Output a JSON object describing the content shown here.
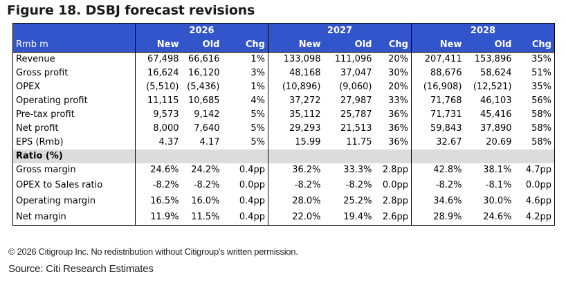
{
  "title": "Figure 18. DSBJ forecast revisions",
  "years": [
    "2026",
    "2027",
    "2028"
  ],
  "unit_label": "Rmb m",
  "col_labels": [
    "New",
    "Old",
    "Chg"
  ],
  "rows": [
    {
      "label": "Revenue",
      "values": [
        "67,498",
        "66,616",
        "1%",
        "133,098",
        "111,096",
        "20%",
        "207,411",
        "153,896",
        "35%"
      ]
    },
    {
      "label": "Gross profit",
      "values": [
        "16,624",
        "16,120",
        "3%",
        "48,168",
        "37,047",
        "30%",
        "88,676",
        "58,624",
        "51%"
      ]
    },
    {
      "label": "OPEX",
      "values": [
        "(5,510)",
        "(5,436)",
        "1%",
        "(10,896)",
        "(9,060)",
        "20%",
        "(16,908)",
        "(12,521)",
        "35%"
      ]
    },
    {
      "label": "Operating profit",
      "values": [
        "11,115",
        "10,685",
        "4%",
        "37,272",
        "27,987",
        "33%",
        "71,768",
        "46,103",
        "56%"
      ]
    },
    {
      "label": "Pre-tax profit",
      "values": [
        "9,573",
        "9,142",
        "5%",
        "35,112",
        "25,787",
        "36%",
        "71,731",
        "45,416",
        "58%"
      ]
    },
    {
      "label": "Net profit",
      "values": [
        "8,000",
        "7,640",
        "5%",
        "29,293",
        "21,513",
        "36%",
        "59,843",
        "37,890",
        "58%"
      ]
    },
    {
      "label": "EPS (Rmb)",
      "values": [
        "4.37",
        "4.17",
        "5%",
        "15.99",
        "11.75",
        "36%",
        "32.67",
        "20.69",
        "58%"
      ]
    }
  ],
  "ratio_section_label": "Ratio (%)",
  "ratio_rows": [
    {
      "label": "Gross margin",
      "values": [
        "24.6%",
        "24.2%",
        "0.4pp",
        "36.2%",
        "33.3%",
        "2.8pp",
        "42.8%",
        "38.1%",
        "4.7pp"
      ]
    },
    {
      "label": "OPEX to Sales ratio",
      "values": [
        "-8.2%",
        "-8.2%",
        "0.0pp",
        "-8.2%",
        "-8.2%",
        "0.0pp",
        "-8.2%",
        "-8.1%",
        "0.0pp"
      ]
    },
    {
      "label": "Operating margin",
      "values": [
        "16.5%",
        "16.0%",
        "0.4pp",
        "28.0%",
        "25.2%",
        "2.8pp",
        "34.6%",
        "30.0%",
        "4.6pp"
      ]
    },
    {
      "label": "Net margin",
      "values": [
        "11.9%",
        "11.5%",
        "0.4pp",
        "22.0%",
        "19.4%",
        "2.6pp",
        "28.9%",
        "24.6%",
        "4.2pp"
      ]
    }
  ],
  "footer": {
    "copyright": "© 2026 Citigroup Inc. No redistribution without Citigroup’s written permission.",
    "source": "Source: Citi Research Estimates"
  },
  "colors": {
    "header_bg": "#3355cc",
    "section_bg": "#dcdcdc"
  }
}
